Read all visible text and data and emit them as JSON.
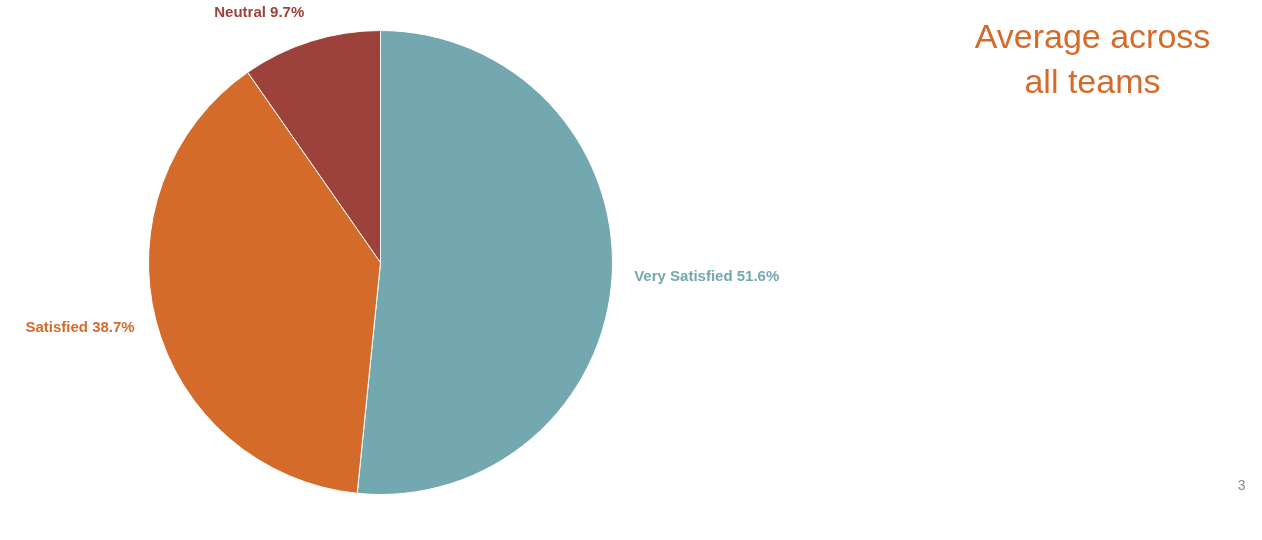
{
  "chart_data": {
    "type": "pie",
    "title": "Average across all teams",
    "categories": [
      "Very Satisfied",
      "Satisfied",
      "Neutral"
    ],
    "values": [
      51.6,
      38.7,
      9.7
    ],
    "colors": [
      "#74a8b0",
      "#d46b2b",
      "#9c423b"
    ],
    "value_labels": [
      "51.6%",
      "38.7%",
      "9.7%"
    ],
    "annotations": [
      "3"
    ]
  }
}
